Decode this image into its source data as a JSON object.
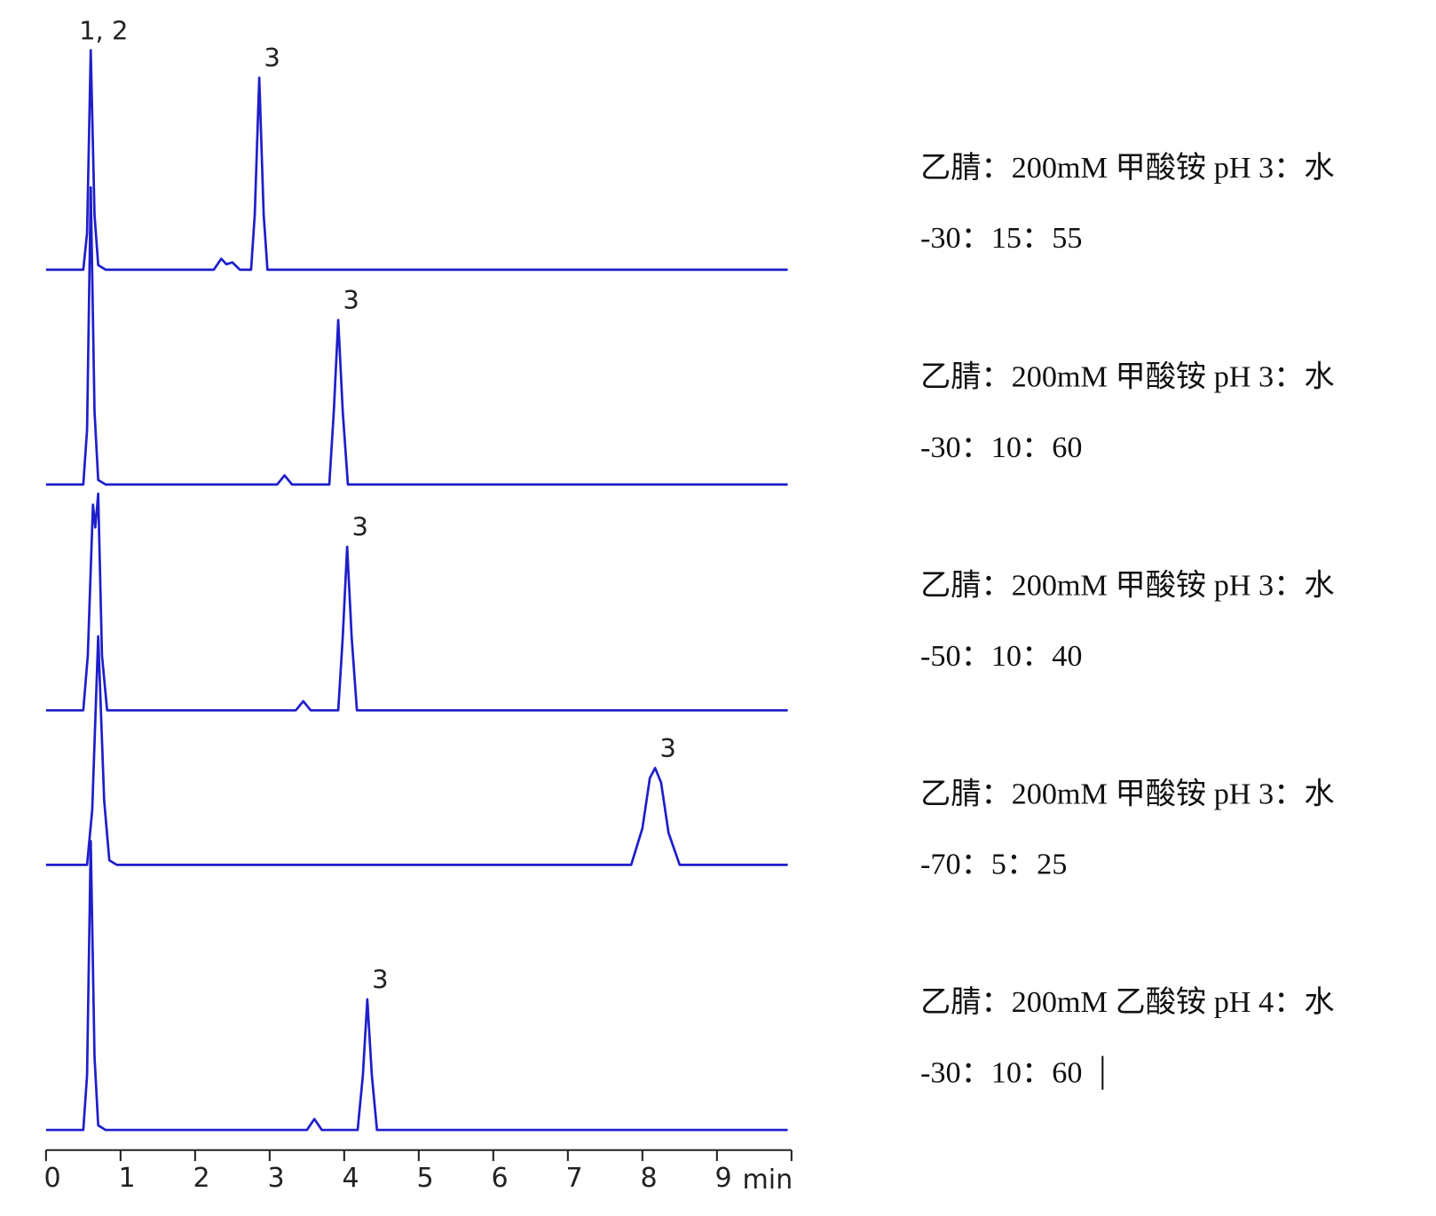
{
  "chart_data": {
    "type": "line",
    "xlabel": "min",
    "xlim": [
      0,
      10
    ],
    "xticks": [
      0,
      1,
      2,
      3,
      4,
      5,
      6,
      7,
      8,
      9
    ],
    "color": "#1e1ecb",
    "series": [
      {
        "x": [
          0,
          0.5,
          0.55,
          0.6,
          0.65,
          0.7,
          0.8,
          2.25,
          2.35,
          2.42,
          2.5,
          2.6,
          2.75,
          2.8,
          2.86,
          2.92,
          2.97,
          9.95
        ],
        "values": [
          0,
          0,
          40,
          240,
          60,
          5,
          0,
          0,
          12,
          6,
          8,
          0,
          0,
          60,
          210,
          60,
          0,
          0
        ],
        "peak_labels": [
          {
            "label": "1, 2",
            "x": 0.6
          },
          {
            "label": "3",
            "x": 2.86
          }
        ],
        "condition": [
          "乙腈：200mM 甲酸铵  pH 3：水",
          "-30：15：55"
        ]
      },
      {
        "x": [
          0,
          0.5,
          0.55,
          0.6,
          0.65,
          0.7,
          0.8,
          3.1,
          3.2,
          3.3,
          3.8,
          3.86,
          3.92,
          3.98,
          4.05,
          9.95
        ],
        "values": [
          0,
          0,
          60,
          325,
          80,
          5,
          0,
          0,
          10,
          0,
          0,
          80,
          180,
          80,
          0,
          0
        ],
        "peak_labels": [
          {
            "label": "3",
            "x": 3.92
          }
        ],
        "condition": [
          "乙腈：200mM 甲酸铵  pH 3：水",
          "-30：10：60"
        ]
      },
      {
        "x": [
          0,
          0.5,
          0.56,
          0.63,
          0.66,
          0.7,
          0.75,
          0.82,
          3.35,
          3.45,
          3.55,
          3.92,
          3.98,
          4.04,
          4.1,
          4.17,
          9.95
        ],
        "values": [
          0,
          0,
          60,
          225,
          200,
          237,
          60,
          0,
          0,
          10,
          0,
          0,
          80,
          179,
          80,
          0,
          0
        ],
        "peak_labels": [
          {
            "label": "3",
            "x": 4.04
          }
        ],
        "condition": [
          "乙腈：200mM 甲酸铵  pH 3：水",
          "-50：10：40"
        ]
      },
      {
        "x": [
          0,
          0.55,
          0.62,
          0.7,
          0.78,
          0.85,
          0.95,
          7.85,
          8.0,
          8.1,
          8.17,
          8.25,
          8.35,
          8.5,
          9.95
        ],
        "values": [
          0,
          0,
          60,
          250,
          70,
          5,
          0,
          0,
          40,
          95,
          106,
          90,
          35,
          0,
          0
        ],
        "peak_labels": [
          {
            "label": "3",
            "x": 8.17
          }
        ],
        "condition": [
          "乙腈：200mM 甲酸铵  pH 3：水",
          "-70：5：25"
        ]
      },
      {
        "x": [
          0,
          0.5,
          0.55,
          0.6,
          0.65,
          0.7,
          0.8,
          3.5,
          3.6,
          3.7,
          4.18,
          4.25,
          4.31,
          4.37,
          4.44,
          9.95
        ],
        "values": [
          0,
          0,
          60,
          316,
          80,
          5,
          0,
          0,
          12,
          0,
          0,
          60,
          143,
          60,
          0,
          0
        ],
        "peak_labels": [
          {
            "label": "3",
            "x": 4.31
          }
        ],
        "condition": [
          "乙腈：200mM 乙酸铵  pH 4：水",
          "-30：10：60"
        ]
      }
    ]
  }
}
